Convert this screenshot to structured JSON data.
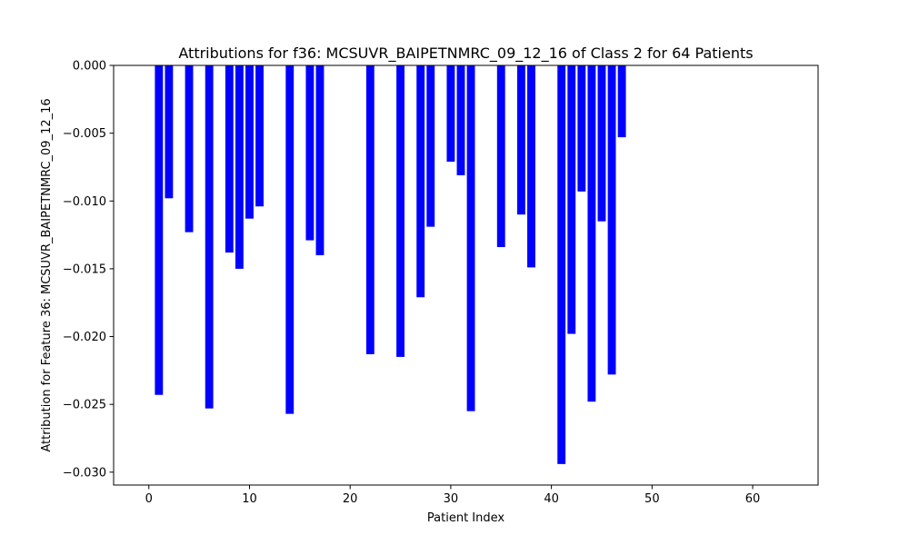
{
  "chart_data": {
    "type": "bar",
    "title": "Attributions for f36: MCSUVR_BAIPETNMRC_09_12_16 of Class 2 for 64 Patients",
    "xlabel": "Patient Index",
    "ylabel": "Attribution for Feature 36: MCSUVR_BAIPETNMRC_09_12_16",
    "xlim": [
      -3.5,
      66.5
    ],
    "ylim": [
      -0.03095,
      0.0
    ],
    "xticks": [
      0,
      10,
      20,
      30,
      40,
      50,
      60
    ],
    "xtick_labels": [
      "0",
      "10",
      "20",
      "30",
      "40",
      "50",
      "60"
    ],
    "yticks": [
      0.0,
      -0.005,
      -0.01,
      -0.015,
      -0.02,
      -0.025,
      -0.03
    ],
    "ytick_labels": [
      "0.000",
      "−0.005",
      "−0.010",
      "−0.015",
      "−0.020",
      "−0.025",
      "−0.030"
    ],
    "bar_width": 0.8,
    "bar_color": "#0000ff",
    "grid": false,
    "x": [
      0,
      1,
      2,
      3,
      4,
      5,
      6,
      7,
      8,
      9,
      10,
      11,
      12,
      13,
      14,
      15,
      16,
      17,
      18,
      19,
      20,
      21,
      22,
      23,
      24,
      25,
      26,
      27,
      28,
      29,
      30,
      31,
      32,
      33,
      34,
      35,
      36,
      37,
      38,
      39,
      40,
      41,
      42,
      43,
      44,
      45,
      46,
      47,
      48,
      49,
      50,
      51,
      52,
      53,
      54,
      55,
      56,
      57,
      58,
      59,
      60,
      61,
      62,
      63
    ],
    "values": [
      0,
      -0.0243,
      -0.0098,
      0,
      -0.0123,
      0,
      -0.0253,
      0,
      -0.0138,
      -0.015,
      -0.0113,
      -0.0104,
      0,
      0,
      -0.0257,
      0,
      -0.0129,
      -0.014,
      0,
      0,
      0,
      0,
      -0.0213,
      0,
      0,
      -0.0215,
      0,
      -0.0171,
      -0.0119,
      0,
      -0.0071,
      -0.0081,
      -0.0255,
      0,
      0,
      -0.0134,
      0,
      -0.011,
      -0.0149,
      0,
      0,
      -0.0294,
      -0.0198,
      -0.0093,
      -0.0248,
      -0.0115,
      -0.0228,
      -0.0053,
      0,
      0,
      0,
      0,
      0,
      0,
      0,
      0,
      0,
      0,
      0,
      0,
      0,
      0,
      0,
      0
    ]
  }
}
